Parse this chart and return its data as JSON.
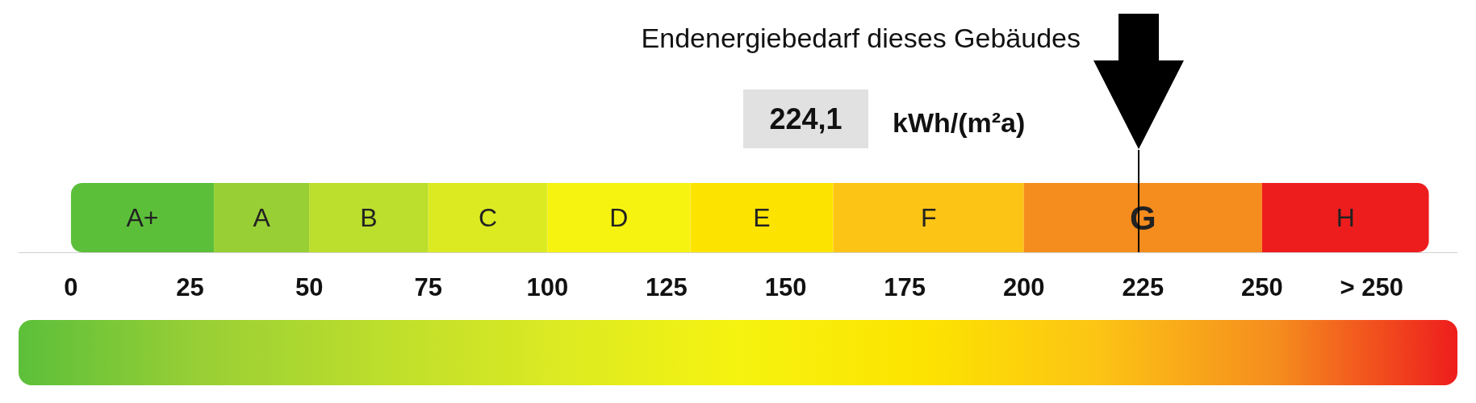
{
  "chart_data": {
    "type": "bar",
    "orientation": "horizontal",
    "stacked": true,
    "title": "Endenergiebedarf dieses Gebäudes",
    "xlabel": "kWh/(m²a)",
    "categories": [
      null
    ],
    "series": [
      {
        "name": "A+",
        "color": "#5cbf3a",
        "values": [
          30
        ]
      },
      {
        "name": "A",
        "color": "#98cf35",
        "values": [
          20
        ]
      },
      {
        "name": "B",
        "color": "#bcde2c",
        "values": [
          25
        ]
      },
      {
        "name": "C",
        "color": "#dcea22",
        "values": [
          25
        ]
      },
      {
        "name": "D",
        "color": "#f6f310",
        "values": [
          30
        ]
      },
      {
        "name": "E",
        "color": "#fce400",
        "values": [
          30
        ]
      },
      {
        "name": "F",
        "color": "#fcc414",
        "values": [
          40
        ]
      },
      {
        "name": "G",
        "color": "#f58c1e",
        "values": [
          50
        ]
      },
      {
        "name": "H",
        "color": "#ee1d1d",
        "values": [
          35
        ]
      }
    ],
    "xlim": [
      -11,
      291
    ],
    "xticks": [
      0,
      25,
      50,
      75,
      100,
      125,
      150,
      175,
      200,
      225,
      250,
      {
        "value": 273,
        "label": "> 250"
      }
    ],
    "ref_lines": [
      {
        "axis": "x",
        "value": 224.1
      }
    ],
    "annotations": [
      "224,1"
    ],
    "grid": false,
    "legend": false
  }
}
